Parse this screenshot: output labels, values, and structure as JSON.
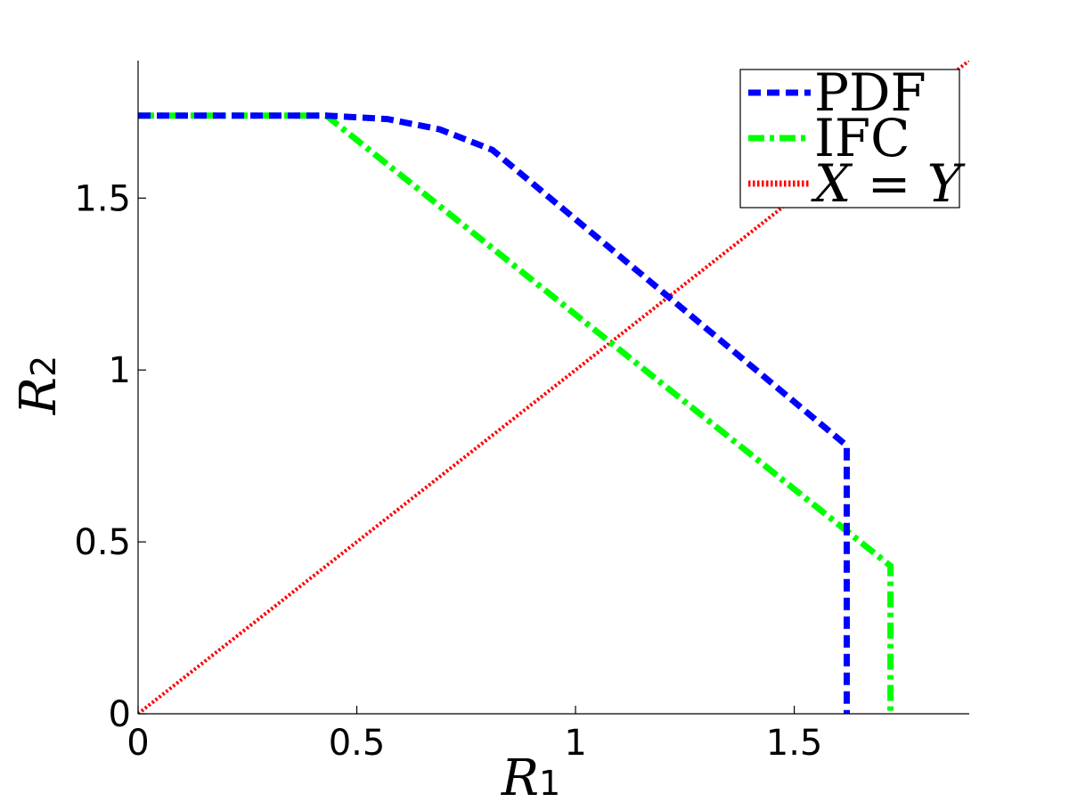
{
  "chart_data": {
    "type": "line",
    "xlabel": {
      "base": "R",
      "sub": "1"
    },
    "ylabel": {
      "base": "R",
      "sub": "2"
    },
    "xlim": [
      0,
      1.9
    ],
    "ylim": [
      0,
      1.9
    ],
    "xticks": [
      0,
      0.5,
      1,
      1.5
    ],
    "xtick_labels": [
      "0",
      "0.5",
      "1",
      "1.5"
    ],
    "yticks": [
      0,
      0.5,
      1,
      1.5
    ],
    "ytick_labels": [
      "0",
      "0.5",
      "1",
      "1.5"
    ],
    "grid": false,
    "legend_position": "top-right",
    "series": [
      {
        "name": "PDF",
        "color": "#0000ff",
        "style": "dashed",
        "x": [
          0,
          0.43,
          0.57,
          0.69,
          0.81,
          1.62,
          1.62
        ],
        "y": [
          1.74,
          1.74,
          1.73,
          1.7,
          1.64,
          0.78,
          0
        ]
      },
      {
        "name": "IFC",
        "color": "#00ff00",
        "style": "dashdot",
        "x": [
          0,
          0.43,
          1.72,
          1.72
        ],
        "y": [
          1.74,
          1.74,
          0.43,
          0
        ]
      },
      {
        "name": "X = Y",
        "name_parts": [
          "X",
          " = ",
          "Y"
        ],
        "color": "#ff0000",
        "style": "dotted",
        "x": [
          0,
          1.9
        ],
        "y": [
          0,
          1.9
        ]
      }
    ]
  }
}
